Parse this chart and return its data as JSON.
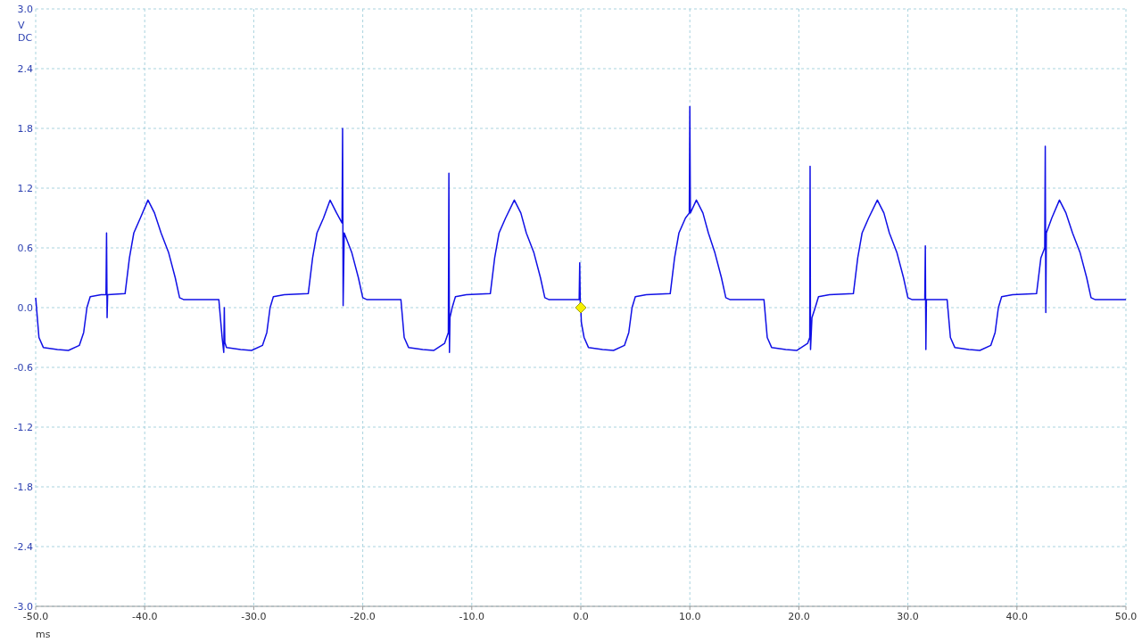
{
  "chart_data": {
    "type": "line",
    "xlabel": "ms",
    "ylabel": "V",
    "annotations": [
      "DC"
    ],
    "xlim": [
      -50,
      50
    ],
    "ylim": [
      -3,
      3
    ],
    "xticks": [
      {
        "value": -50,
        "label": "-50.0"
      },
      {
        "value": -40,
        "label": "-40.0"
      },
      {
        "value": -30,
        "label": "-30.0"
      },
      {
        "value": -20,
        "label": "-20.0"
      },
      {
        "value": -10,
        "label": "-10.0"
      },
      {
        "value": 0,
        "label": "0.0"
      },
      {
        "value": 10,
        "label": "10.0"
      },
      {
        "value": 20,
        "label": "20.0"
      },
      {
        "value": 30,
        "label": "30.0"
      },
      {
        "value": 40,
        "label": "40.0"
      },
      {
        "value": 50,
        "label": "50.0"
      }
    ],
    "yticks": [
      {
        "value": -3,
        "label": "-3.0"
      },
      {
        "value": -2.4,
        "label": "-2.4"
      },
      {
        "value": -1.8,
        "label": "-1.8"
      },
      {
        "value": -1.2,
        "label": "-1.2"
      },
      {
        "value": -0.6,
        "label": "-0.6"
      },
      {
        "value": 0,
        "label": "0.0"
      },
      {
        "value": 0.6,
        "label": "0.6"
      },
      {
        "value": 1.2,
        "label": "1.2"
      },
      {
        "value": 1.8,
        "label": "1.8"
      },
      {
        "value": 2.4,
        "label": "2.4"
      },
      {
        "value": 3,
        "label": "3.0"
      }
    ],
    "grid": true,
    "marker": "none",
    "line_style": "solid",
    "series": [
      {
        "color": "#1010e6",
        "x": [
          -50,
          -49.7,
          -49.3,
          -48,
          -47,
          -46,
          -45.6,
          -45.3,
          -45,
          -44,
          -43.55,
          -43.5,
          -43.45,
          -43.4,
          -41.8,
          -41.4,
          -41,
          -40.4,
          -39.7,
          -39.1,
          -38.5,
          -37.8,
          -37.2,
          -36.8,
          -36.4,
          -33.2,
          -32.9,
          -32.75,
          -32.7,
          -32.65,
          -32.5,
          -31.2,
          -30.2,
          -29.2,
          -28.8,
          -28.5,
          -28.2,
          -27.2,
          -25,
          -24.6,
          -24.2,
          -23.6,
          -23,
          -22.4,
          -21.9,
          -21.85,
          -21.8,
          -21.7,
          -21,
          -20.4,
          -20,
          -19.6,
          -16.5,
          -16.2,
          -15.8,
          -14.5,
          -13.5,
          -12.5,
          -12.15,
          -12.1,
          -12.05,
          -12,
          -11.8,
          -11.5,
          -10.5,
          -8.3,
          -7.9,
          -7.5,
          -6.9,
          -6.1,
          -5.5,
          -5,
          -4.3,
          -3.7,
          -3.3,
          -2.9,
          -0.15,
          -0.1,
          -0.05,
          0,
          0.05,
          0.3,
          0.7,
          2,
          3,
          4,
          4.4,
          4.7,
          5,
          6,
          8.2,
          8.6,
          9,
          9.6,
          9.95,
          10,
          10.05,
          10.6,
          11.2,
          11.7,
          12.3,
          12.9,
          13.3,
          13.7,
          16.8,
          17.1,
          17.5,
          18.8,
          19.8,
          20.8,
          21,
          21.03,
          21.07,
          21.2,
          21.5,
          21.8,
          22.8,
          25,
          25.4,
          25.8,
          26.4,
          27.2,
          27.8,
          28.3,
          29,
          29.6,
          30,
          30.4,
          31.55,
          31.6,
          31.65,
          31.7,
          33.6,
          33.9,
          34.3,
          35.6,
          36.6,
          37.6,
          38,
          38.3,
          38.6,
          39.6,
          41.8,
          42.2,
          42.55,
          42.6,
          42.65,
          42.7,
          43.2,
          43.9,
          44.5,
          45.1,
          45.8,
          46.4,
          46.8,
          47.2,
          50
        ],
        "values": [
          0.1,
          -0.3,
          -0.4,
          -0.42,
          -0.43,
          -0.38,
          -0.25,
          0,
          0.11,
          0.13,
          0.13,
          0.75,
          -0.1,
          0.13,
          0.14,
          0.5,
          0.75,
          0.9,
          1.08,
          0.95,
          0.75,
          0.55,
          0.3,
          0.1,
          0.08,
          0.08,
          -0.3,
          -0.45,
          0,
          -0.35,
          -0.4,
          -0.42,
          -0.43,
          -0.38,
          -0.25,
          0,
          0.11,
          0.13,
          0.14,
          0.5,
          0.75,
          0.9,
          1.08,
          0.95,
          0.85,
          1.8,
          0.02,
          0.75,
          0.55,
          0.3,
          0.1,
          0.08,
          0.08,
          -0.3,
          -0.4,
          -0.42,
          -0.43,
          -0.36,
          -0.25,
          1.35,
          -0.45,
          -0.1,
          0,
          0.11,
          0.13,
          0.14,
          0.5,
          0.75,
          0.9,
          1.08,
          0.95,
          0.75,
          0.55,
          0.3,
          0.1,
          0.08,
          0.08,
          0.45,
          0.05,
          0,
          -0.15,
          -0.3,
          -0.4,
          -0.42,
          -0.43,
          -0.38,
          -0.25,
          0,
          0.11,
          0.13,
          0.14,
          0.5,
          0.75,
          0.9,
          0.95,
          2.02,
          0.95,
          1.08,
          0.95,
          0.75,
          0.55,
          0.3,
          0.1,
          0.08,
          0.08,
          -0.3,
          -0.4,
          -0.42,
          -0.43,
          -0.36,
          -0.3,
          1.42,
          -0.42,
          -0.1,
          0,
          0.11,
          0.13,
          0.14,
          0.5,
          0.75,
          0.9,
          1.08,
          0.95,
          0.75,
          0.55,
          0.3,
          0.1,
          0.08,
          0.08,
          0.62,
          -0.42,
          0.08,
          0.08,
          -0.3,
          -0.4,
          -0.42,
          -0.43,
          -0.38,
          -0.25,
          0,
          0.11,
          0.13,
          0.14,
          0.5,
          0.6,
          1.62,
          -0.05,
          0.75,
          0.9,
          1.08,
          0.95,
          0.75,
          0.55,
          0.3,
          0.1,
          0.08,
          0.08
        ]
      }
    ]
  }
}
